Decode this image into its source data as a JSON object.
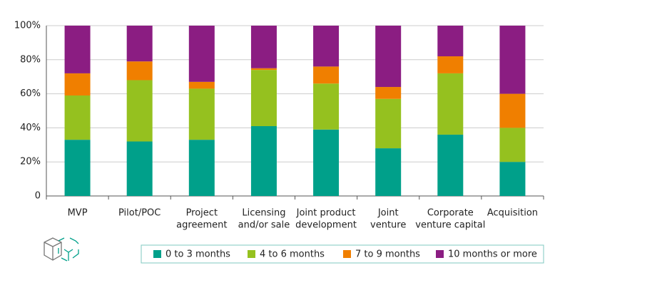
{
  "chart_data": {
    "type": "stacked_bar",
    "categories": [
      [
        "MVP"
      ],
      [
        "Pilot/POC"
      ],
      [
        "Project",
        "agreement"
      ],
      [
        "Licensing",
        "and/or sale"
      ],
      [
        "Joint product",
        "development"
      ],
      [
        "Joint",
        "venture"
      ],
      [
        "Corporate",
        "venture capital"
      ],
      [
        "Acquisition"
      ]
    ],
    "series": [
      {
        "name": "0 to 3 months",
        "color": "#00a08a",
        "values": [
          33,
          32,
          33,
          41,
          39,
          28,
          36,
          20
        ]
      },
      {
        "name": "4 to 6 months",
        "color": "#95c11f",
        "values": [
          26,
          36,
          30,
          33,
          27,
          29,
          36,
          20
        ]
      },
      {
        "name": "7 to 9 months",
        "color": "#f07f00",
        "values": [
          13,
          11,
          4,
          1,
          10,
          7,
          10,
          20
        ]
      },
      {
        "name": "10 months or more",
        "color": "#8b1d82",
        "values": [
          28,
          21,
          33,
          25,
          24,
          36,
          18,
          40
        ]
      }
    ],
    "ylim": [
      0,
      100
    ],
    "yticks": [
      0,
      {
        "value": 20,
        "label": "20%"
      },
      {
        "value": 40,
        "label": "40%"
      },
      {
        "value": 60,
        "label": "60%"
      },
      {
        "value": 80,
        "label": "80%"
      },
      {
        "value": 100,
        "label": "100%"
      }
    ],
    "grid": true
  }
}
